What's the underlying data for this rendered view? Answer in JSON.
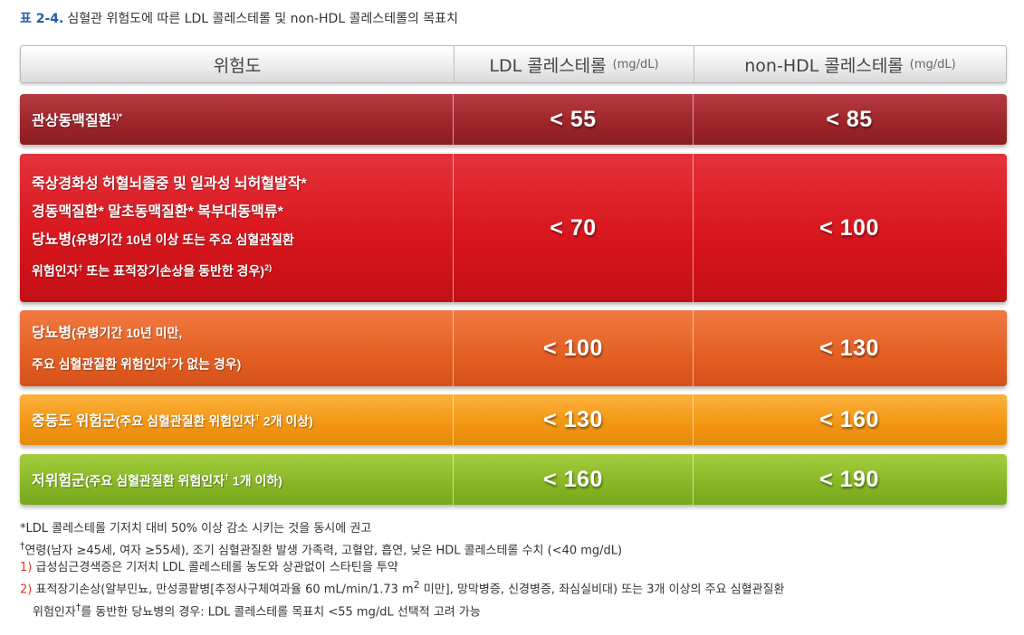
{
  "caption": {
    "label": "표 2-4.",
    "text": "심혈관 위험도에 따른 LDL 콜레스테롤 및 non-HDL 콜레스테롤의 목표치"
  },
  "header": {
    "col_risk": "위험도",
    "col_ldl": "LDL 콜레스테롤",
    "col_ldl_unit": "(mg/dL)",
    "col_nonhdl": "non-HDL 콜레스테롤",
    "col_nonhdl_unit": "(mg/dL)"
  },
  "rows": [
    {
      "risk_line1": "관상동맥질환",
      "risk_line1_sup": "1)*",
      "ldl": "< 55",
      "nonhdl": "< 85",
      "color": "#9d2529"
    },
    {
      "risk_line1": "죽상경화성 허혈뇌졸중 및 일과성 뇌허혈발작*",
      "risk_line2": "경동맥질환*  말초동맥질환*  복부대동맥류*",
      "risk_line3_main": "당뇨병",
      "risk_line3_sub": "(유병기간 10년 이상 또는 주요 심혈관질환",
      "risk_line4_sub": "위험인자",
      "risk_line4_dagger": "†",
      "risk_line4_rest": " 또는 표적장기손상을 동반한 경우)",
      "risk_line4_sup": "2)",
      "ldl": "< 70",
      "nonhdl": "< 100",
      "color": "#d8161d"
    },
    {
      "risk_line1_main": "당뇨병",
      "risk_line1_sub": "(유병기간 10년 미만,",
      "risk_line2_sub": "주요 심혈관질환 위험인자",
      "risk_line2_dagger": "†",
      "risk_line2_rest": "가 없는 경우)",
      "ldl": "< 100",
      "nonhdl": "< 130",
      "color": "#e45f22"
    },
    {
      "risk_main": "중등도 위험군",
      "risk_sub": "(주요 심혈관질환 위험인자",
      "risk_dagger": "†",
      "risk_rest": " 2개 이상)",
      "ldl": "< 130",
      "nonhdl": "< 160",
      "color": "#f39512"
    },
    {
      "risk_main": "저위험군",
      "risk_sub": "(주요 심혈관질환 위험인자",
      "risk_dagger": "†",
      "risk_rest": " 1개 이하)",
      "ldl": "< 160",
      "nonhdl": "< 190",
      "color": "#86b625"
    }
  ],
  "footnotes": {
    "star_mark": "*",
    "star_text": "LDL 콜레스테롤 기저치 대비 50% 이상 감소 시키는 것을 동시에 권고",
    "dagger_mark": "†",
    "dagger_text": "연령(남자 ≥45세, 여자 ≥55세), 조기 심혈관질환 발생 가족력, 고혈압, 흡연, 낮은 HDL 콜레스테롤 수치 (<40 mg/dL)",
    "n1_mark": "1)",
    "n1_text": "급성심근경색증은 기저치 LDL 콜레스테롤 농도와 상관없이 스타틴을 투약",
    "n2_mark": "2)",
    "n2_text_a": "표적장기손상(알부민뇨, 만성콩팥병[추정사구체여과율 60 mL/min/1.73 m",
    "n2_sup": "2",
    "n2_text_b": " 미만], 망막병증, 신경병증, 좌심실비대) 또는 3개 이상의 주요 심혈관질환",
    "n2_text_c": "위험인자",
    "n2_dagger": "†",
    "n2_text_d": "를 동반한 당뇨병의 경우: LDL 콜레스테롤 목표치 <55 mg/dL 선택적 고려 가능"
  }
}
